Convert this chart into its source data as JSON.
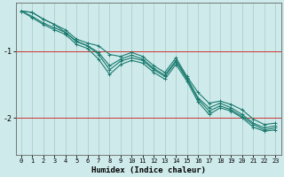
{
  "xlabel": "Humidex (Indice chaleur)",
  "background_color": "#ceeaea",
  "grid_color": "#aed0d0",
  "line_color": "#1a7a6e",
  "red_line_color": "#cc3333",
  "xlim": [
    -0.5,
    23.5
  ],
  "ylim": [
    -2.55,
    -0.28
  ],
  "yticks": [
    -2,
    -1
  ],
  "xticks": [
    0,
    1,
    2,
    3,
    4,
    5,
    6,
    7,
    8,
    9,
    10,
    11,
    12,
    13,
    14,
    15,
    16,
    17,
    18,
    19,
    20,
    21,
    22,
    23
  ],
  "x": [
    0,
    1,
    2,
    3,
    4,
    5,
    6,
    7,
    8,
    9,
    10,
    11,
    12,
    13,
    14,
    15,
    16,
    17,
    18,
    19,
    20,
    21,
    22,
    23
  ],
  "lines": [
    [
      -0.4,
      -0.42,
      -0.52,
      -0.6,
      -0.68,
      -0.82,
      -0.88,
      -0.92,
      -1.05,
      -1.08,
      -1.02,
      -1.08,
      -1.22,
      -1.32,
      -1.1,
      -1.38,
      -1.62,
      -1.78,
      -1.75,
      -1.8,
      -1.88,
      -2.02,
      -2.1,
      -2.08
    ],
    [
      -0.4,
      -0.42,
      -0.52,
      -0.6,
      -0.72,
      -0.86,
      -0.92,
      -1.02,
      -1.22,
      -1.12,
      -1.06,
      -1.12,
      -1.26,
      -1.36,
      -1.14,
      -1.4,
      -1.7,
      -1.85,
      -1.78,
      -1.85,
      -1.95,
      -2.08,
      -2.15,
      -2.12
    ],
    [
      -0.4,
      -0.48,
      -0.58,
      -0.65,
      -0.72,
      -0.85,
      -0.92,
      -1.05,
      -1.28,
      -1.15,
      -1.1,
      -1.14,
      -1.28,
      -1.38,
      -1.16,
      -1.42,
      -1.72,
      -1.9,
      -1.82,
      -1.88,
      -1.98,
      -2.1,
      -2.18,
      -2.15
    ],
    [
      -0.4,
      -0.5,
      -0.6,
      -0.68,
      -0.75,
      -0.9,
      -0.96,
      -1.12,
      -1.35,
      -1.2,
      -1.14,
      -1.18,
      -1.32,
      -1.42,
      -1.2,
      -1.45,
      -1.76,
      -1.95,
      -1.85,
      -1.9,
      -2.0,
      -2.14,
      -2.2,
      -2.18
    ]
  ],
  "xlabel_fontsize": 6.5,
  "tick_fontsize": 5,
  "ytick_fontsize": 6
}
